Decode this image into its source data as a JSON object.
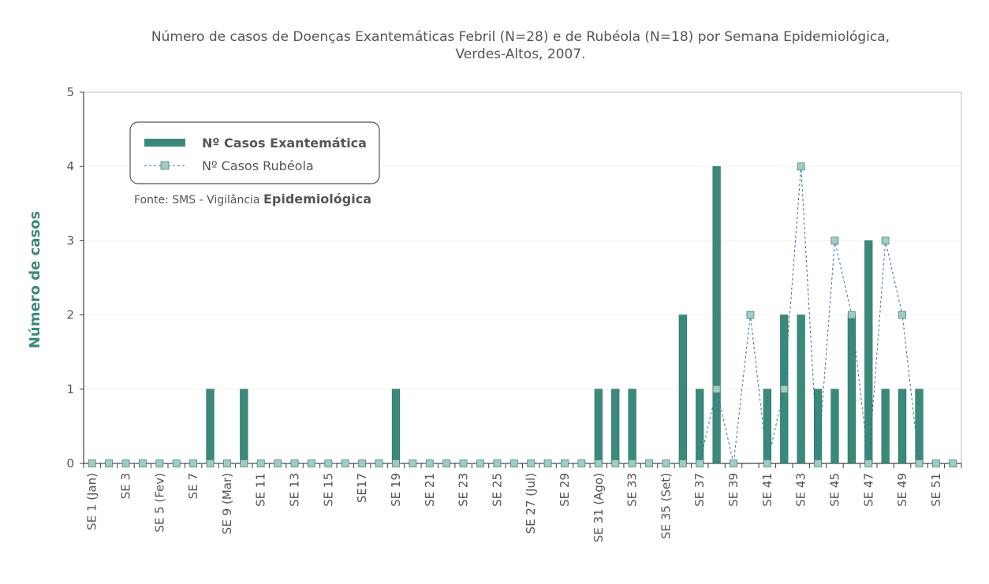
{
  "chart_data": {
    "type": "bar",
    "title_line1": "Número de casos de Doenças Exantemáticas Febril (N=28) e de Rubéola (N=18) por Semana Epidemiológica,",
    "title_line2": "Verdes-Altos, 2007.",
    "ylabel": "Número de casos",
    "xlabel": "",
    "ylim": [
      0,
      5
    ],
    "yticks": [
      0,
      1,
      2,
      3,
      4,
      5
    ],
    "grid": true,
    "legend_position": "top-left",
    "source_prefix": "Fonte: SMS - Vigilância ",
    "source_emphasis": "Epidemiológica",
    "x": [
      1,
      2,
      3,
      4,
      5,
      6,
      7,
      8,
      9,
      10,
      11,
      12,
      13,
      14,
      15,
      16,
      17,
      18,
      19,
      20,
      21,
      22,
      23,
      24,
      25,
      26,
      27,
      28,
      29,
      30,
      31,
      32,
      33,
      34,
      35,
      36,
      37,
      38,
      39,
      40,
      41,
      42,
      43,
      44,
      45,
      46,
      47,
      48,
      49,
      50,
      51,
      52
    ],
    "x_tick_labels": [
      {
        "x": 1,
        "label": "SE 1 (Jan)"
      },
      {
        "x": 3,
        "label": "SE 3"
      },
      {
        "x": 5,
        "label": "SE 5 (Fev)"
      },
      {
        "x": 7,
        "label": "SE 7"
      },
      {
        "x": 9,
        "label": "SE 9 (Mar)"
      },
      {
        "x": 11,
        "label": "SE 11"
      },
      {
        "x": 13,
        "label": "SE 13"
      },
      {
        "x": 15,
        "label": "SE 15"
      },
      {
        "x": 17,
        "label": "SE17"
      },
      {
        "x": 19,
        "label": "SE 19"
      },
      {
        "x": 21,
        "label": "SE 21"
      },
      {
        "x": 23,
        "label": "SE 23"
      },
      {
        "x": 25,
        "label": "SE 25"
      },
      {
        "x": 27,
        "label": "SE 27 (Jul)"
      },
      {
        "x": 29,
        "label": "SE 29"
      },
      {
        "x": 31,
        "label": "SE 31 (Ago)"
      },
      {
        "x": 33,
        "label": "SE 33"
      },
      {
        "x": 35,
        "label": "SE 35 (Set)"
      },
      {
        "x": 37,
        "label": "SE 37"
      },
      {
        "x": 39,
        "label": "SE 39"
      },
      {
        "x": 41,
        "label": "SE 41"
      },
      {
        "x": 43,
        "label": "SE 43"
      },
      {
        "x": 45,
        "label": "SE 45"
      },
      {
        "x": 47,
        "label": "SE 47"
      },
      {
        "x": 49,
        "label": "SE 49"
      },
      {
        "x": 51,
        "label": "SE 51"
      }
    ],
    "series": [
      {
        "name": "Nº Casos Exantemática",
        "kind": "bar",
        "color": "#3a8a7b",
        "values": [
          0,
          0,
          0,
          0,
          0,
          0,
          0,
          1,
          0,
          1,
          0,
          0,
          0,
          0,
          0,
          0,
          0,
          0,
          1,
          0,
          0,
          0,
          0,
          0,
          0,
          0,
          0,
          0,
          0,
          0,
          1,
          1,
          1,
          0,
          0,
          2,
          1,
          4,
          0,
          0,
          1,
          2,
          2,
          1,
          1,
          2,
          3,
          1,
          1,
          1,
          0,
          0
        ]
      },
      {
        "name": "Nº Casos Rubéola",
        "kind": "line",
        "color": "#2f6fa8",
        "marker_color": "#9ccfc3",
        "values": [
          0,
          0,
          0,
          0,
          0,
          0,
          0,
          0,
          0,
          0,
          0,
          0,
          0,
          0,
          0,
          0,
          0,
          0,
          0,
          0,
          0,
          0,
          0,
          0,
          0,
          0,
          0,
          0,
          0,
          0,
          0,
          0,
          0,
          0,
          0,
          0,
          0,
          1,
          0,
          2,
          0,
          1,
          4,
          0,
          3,
          2,
          0,
          3,
          2,
          0,
          0,
          0
        ]
      }
    ]
  }
}
